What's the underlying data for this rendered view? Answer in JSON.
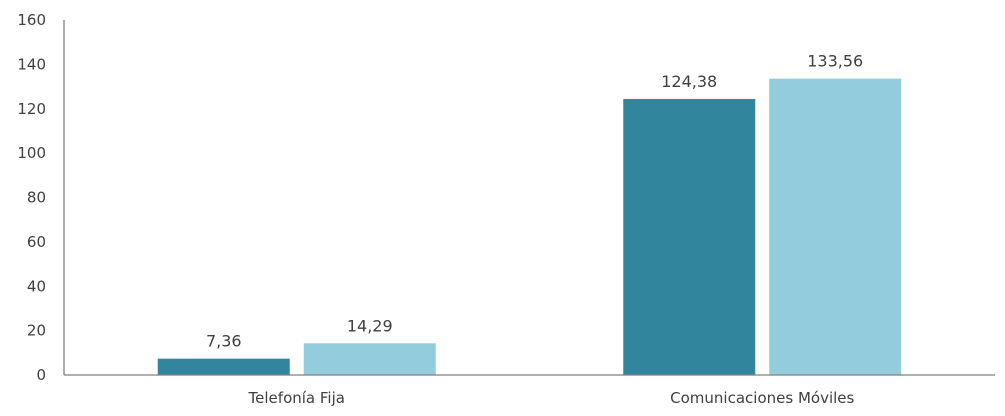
{
  "chart_data": {
    "type": "bar",
    "categories": [
      "Telefonía Fija",
      "Comunicaciones Móviles"
    ],
    "series": [
      {
        "values": [
          7.36,
          124.38
        ],
        "labels": [
          "7,36",
          "124,38"
        ],
        "color": "#31859c"
      },
      {
        "values": [
          14.29,
          133.56
        ],
        "labels": [
          "14,29",
          "133,56"
        ],
        "color": "#93cddd"
      }
    ],
    "ylim": [
      0,
      160
    ],
    "yticks": [
      0,
      20,
      40,
      60,
      80,
      100,
      120,
      140,
      160
    ],
    "title": "",
    "xlabel": "",
    "ylabel": "",
    "grid": false,
    "legend": "none"
  }
}
